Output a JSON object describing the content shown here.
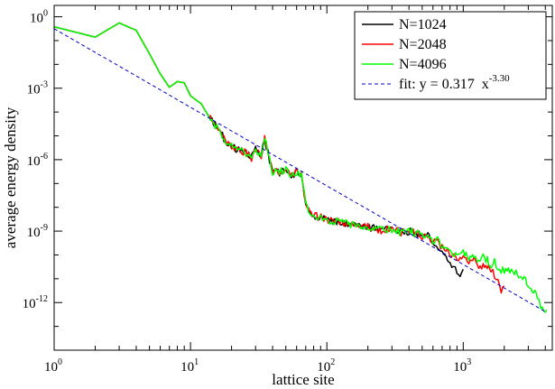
{
  "chart_data": {
    "type": "line",
    "xlabel": "lattice site",
    "ylabel": "average energy density",
    "x_scale": "log",
    "y_scale": "log",
    "xlim": [
      1,
      4500
    ],
    "ylim": [
      1e-14,
      3
    ],
    "x_ticks": [
      {
        "value": 1,
        "base": "10",
        "exp": "0"
      },
      {
        "value": 10,
        "base": "10",
        "exp": "1"
      },
      {
        "value": 100,
        "base": "10",
        "exp": "2"
      },
      {
        "value": 1000,
        "base": "10",
        "exp": "3"
      }
    ],
    "y_ticks": [
      {
        "value": 1,
        "base": "10",
        "exp": "0"
      },
      {
        "value": 0.001,
        "base": "10",
        "exp": "-3"
      },
      {
        "value": 1e-06,
        "base": "10",
        "exp": "-6"
      },
      {
        "value": 1e-09,
        "base": "10",
        "exp": "-9"
      },
      {
        "value": 1e-12,
        "base": "10",
        "exp": "-12"
      }
    ],
    "grid": false,
    "legend_position": "top-right",
    "series": [
      {
        "name": "N=1024",
        "color": "#000000",
        "points": [
          [
            1,
            0.38
          ],
          [
            2,
            0.14
          ],
          [
            3,
            0.55
          ],
          [
            4,
            0.27
          ],
          [
            5,
            0.028
          ],
          [
            6,
            0.004
          ],
          [
            7,
            0.0011
          ],
          [
            8,
            0.0019
          ],
          [
            9,
            0.0017
          ],
          [
            10,
            0.00048
          ],
          [
            12,
            0.00022
          ],
          [
            14,
            5e-05
          ],
          [
            16,
            2e-05
          ],
          [
            18,
            6e-06
          ],
          [
            20,
            4e-06
          ],
          [
            22,
            2.5e-06
          ],
          [
            25,
            2e-06
          ],
          [
            28,
            1.2e-06
          ],
          [
            30,
            3e-06
          ],
          [
            33,
            1.5e-06
          ],
          [
            35,
            8e-06
          ],
          [
            38,
            1e-06
          ],
          [
            40,
            3e-07
          ],
          [
            45,
            3e-07
          ],
          [
            50,
            4e-07
          ],
          [
            55,
            2e-07
          ],
          [
            60,
            3e-07
          ],
          [
            65,
            2.2e-07
          ],
          [
            70,
            1.5e-08
          ],
          [
            75,
            6e-09
          ],
          [
            80,
            4.5e-09
          ],
          [
            100,
            3e-09
          ],
          [
            130,
            2.2e-09
          ],
          [
            160,
            1.8e-09
          ],
          [
            200,
            1.5e-09
          ],
          [
            250,
            1.1e-09
          ],
          [
            300,
            1.2e-09
          ],
          [
            350,
            9e-10
          ],
          [
            400,
            1e-09
          ],
          [
            450,
            8e-10
          ],
          [
            500,
            6e-10
          ],
          [
            550,
            7e-10
          ],
          [
            600,
            3e-10
          ],
          [
            650,
            2.5e-10
          ],
          [
            700,
            1.4e-10
          ],
          [
            750,
            8e-11
          ],
          [
            800,
            4e-11
          ],
          [
            850,
            3e-11
          ],
          [
            900,
            2e-11
          ],
          [
            950,
            1.6e-11
          ],
          [
            1000,
            2.5e-11
          ]
        ]
      },
      {
        "name": "N=2048",
        "color": "#ff0000",
        "points": [
          [
            1,
            0.38
          ],
          [
            2,
            0.14
          ],
          [
            3,
            0.55
          ],
          [
            4,
            0.27
          ],
          [
            5,
            0.028
          ],
          [
            6,
            0.004
          ],
          [
            7,
            0.0011
          ],
          [
            8,
            0.0019
          ],
          [
            9,
            0.0017
          ],
          [
            10,
            0.00048
          ],
          [
            12,
            0.00022
          ],
          [
            14,
            5e-05
          ],
          [
            16,
            2e-05
          ],
          [
            18,
            6e-06
          ],
          [
            20,
            4e-06
          ],
          [
            22,
            2.5e-06
          ],
          [
            25,
            2e-06
          ],
          [
            28,
            1.2e-06
          ],
          [
            30,
            3e-06
          ],
          [
            33,
            1.5e-06
          ],
          [
            35,
            8e-06
          ],
          [
            38,
            1e-06
          ],
          [
            40,
            3e-07
          ],
          [
            45,
            3e-07
          ],
          [
            50,
            4e-07
          ],
          [
            55,
            2e-07
          ],
          [
            60,
            3e-07
          ],
          [
            65,
            2.2e-07
          ],
          [
            70,
            1.5e-08
          ],
          [
            75,
            6e-09
          ],
          [
            80,
            4.5e-09
          ],
          [
            100,
            3e-09
          ],
          [
            130,
            2.2e-09
          ],
          [
            160,
            1.8e-09
          ],
          [
            200,
            1.5e-09
          ],
          [
            250,
            1.1e-09
          ],
          [
            300,
            1.2e-09
          ],
          [
            350,
            9e-10
          ],
          [
            400,
            1e-09
          ],
          [
            450,
            8e-10
          ],
          [
            500,
            6e-10
          ],
          [
            550,
            7e-10
          ],
          [
            600,
            4e-10
          ],
          [
            650,
            3.5e-10
          ],
          [
            700,
            2e-10
          ],
          [
            750,
            1.5e-10
          ],
          [
            800,
            1.1e-10
          ],
          [
            900,
            6e-11
          ],
          [
            1000,
            8e-11
          ],
          [
            1100,
            5e-11
          ],
          [
            1200,
            6e-11
          ],
          [
            1300,
            3e-11
          ],
          [
            1400,
            4e-11
          ],
          [
            1500,
            3e-11
          ],
          [
            1600,
            2.5e-11
          ],
          [
            1700,
            1.5e-11
          ],
          [
            1800,
            8e-12
          ],
          [
            1900,
            3e-12
          ],
          [
            2000,
            5e-12
          ]
        ]
      },
      {
        "name": "N=4096",
        "color": "#00ff00",
        "points": [
          [
            1,
            0.38
          ],
          [
            2,
            0.14
          ],
          [
            3,
            0.55
          ],
          [
            4,
            0.27
          ],
          [
            5,
            0.028
          ],
          [
            6,
            0.004
          ],
          [
            7,
            0.0011
          ],
          [
            8,
            0.0019
          ],
          [
            9,
            0.0017
          ],
          [
            10,
            0.00048
          ],
          [
            12,
            0.00022
          ],
          [
            14,
            5e-05
          ],
          [
            16,
            2e-05
          ],
          [
            18,
            6e-06
          ],
          [
            20,
            4e-06
          ],
          [
            22,
            2.5e-06
          ],
          [
            25,
            2e-06
          ],
          [
            28,
            1.2e-06
          ],
          [
            30,
            3e-06
          ],
          [
            33,
            1.5e-06
          ],
          [
            35,
            8e-06
          ],
          [
            38,
            1e-06
          ],
          [
            40,
            3e-07
          ],
          [
            45,
            3e-07
          ],
          [
            50,
            4e-07
          ],
          [
            55,
            2e-07
          ],
          [
            60,
            3e-07
          ],
          [
            65,
            2.2e-07
          ],
          [
            70,
            1.5e-08
          ],
          [
            75,
            6e-09
          ],
          [
            80,
            4.5e-09
          ],
          [
            100,
            3e-09
          ],
          [
            130,
            2.2e-09
          ],
          [
            160,
            1.8e-09
          ],
          [
            200,
            1.5e-09
          ],
          [
            250,
            1.1e-09
          ],
          [
            300,
            1.2e-09
          ],
          [
            350,
            9e-10
          ],
          [
            400,
            1e-09
          ],
          [
            450,
            8e-10
          ],
          [
            500,
            6e-10
          ],
          [
            550,
            7e-10
          ],
          [
            600,
            4e-10
          ],
          [
            650,
            4e-10
          ],
          [
            700,
            2.5e-10
          ],
          [
            750,
            2e-10
          ],
          [
            800,
            1.5e-10
          ],
          [
            900,
            1e-10
          ],
          [
            1000,
            1.2e-10
          ],
          [
            1100,
            8e-11
          ],
          [
            1200,
            1e-10
          ],
          [
            1300,
            6e-11
          ],
          [
            1400,
            8e-11
          ],
          [
            1500,
            6e-11
          ],
          [
            1600,
            4e-11
          ],
          [
            1700,
            5e-11
          ],
          [
            1800,
            3e-11
          ],
          [
            2000,
            2e-11
          ],
          [
            2200,
            2.5e-11
          ],
          [
            2500,
            1.5e-11
          ],
          [
            2800,
            1e-11
          ],
          [
            3000,
            6e-12
          ],
          [
            3200,
            4e-12
          ],
          [
            3500,
            1.5e-12
          ],
          [
            3800,
            6e-13
          ],
          [
            4096,
            5e-13
          ]
        ]
      },
      {
        "name": "fit: y = 0.317  x",
        "name_superscript": "-3.30",
        "color": "#0000cc",
        "style": "dashed",
        "fit": {
          "a": 0.317,
          "b": -3.3
        },
        "points": [
          [
            1,
            0.317
          ],
          [
            4000,
            4.3e-13
          ]
        ]
      }
    ]
  }
}
